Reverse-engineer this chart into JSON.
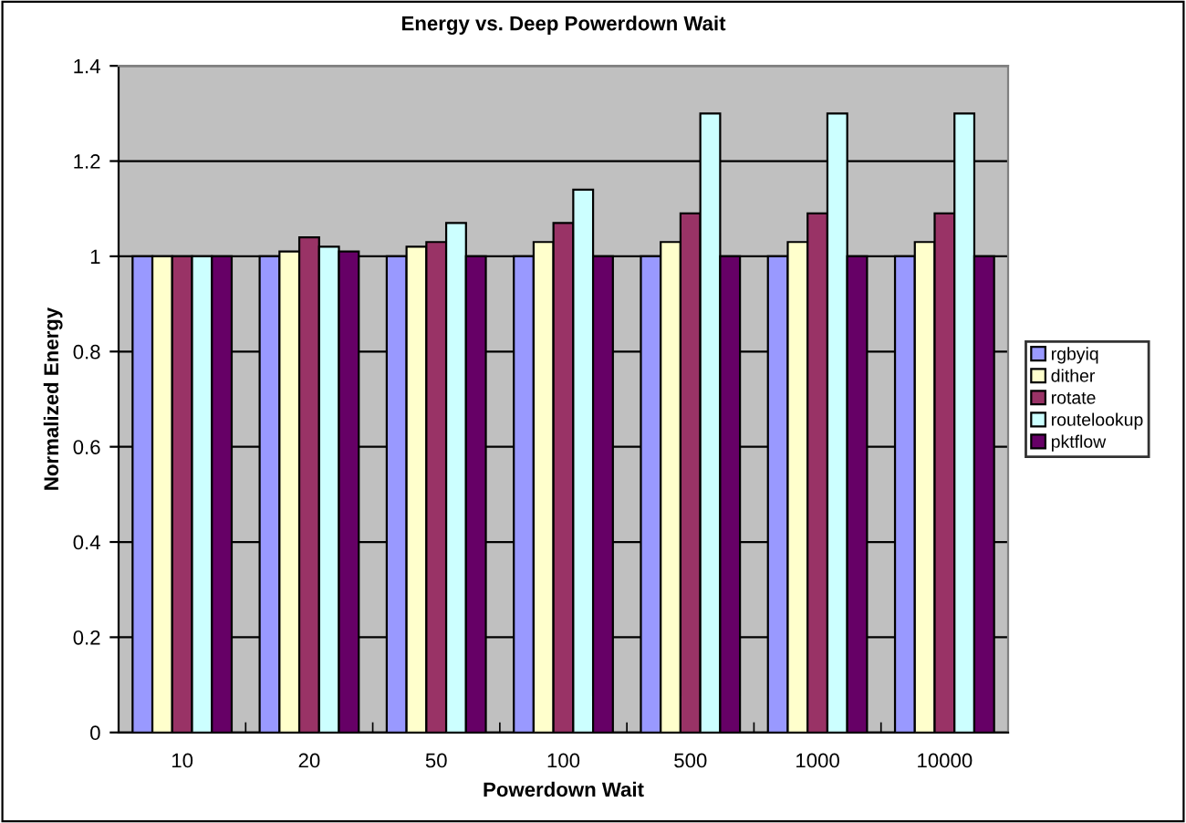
{
  "chart_data": {
    "type": "bar",
    "title": "Energy vs. Deep Powerdown Wait",
    "xlabel": "Powerdown Wait",
    "ylabel": "Normalized Energy",
    "categories": [
      "10",
      "20",
      "50",
      "100",
      "500",
      "1000",
      "10000"
    ],
    "series": [
      {
        "name": "rgbyiq",
        "color": "#9999ff",
        "values": [
          1,
          1,
          1,
          1,
          1,
          1,
          1
        ]
      },
      {
        "name": "dither",
        "color": "#ffffcc",
        "values": [
          1,
          1.01,
          1.02,
          1.03,
          1.03,
          1.03,
          1.03
        ]
      },
      {
        "name": "rotate",
        "color": "#993366",
        "values": [
          1,
          1.04,
          1.03,
          1.07,
          1.09,
          1.09,
          1.09
        ]
      },
      {
        "name": "routelookup",
        "color": "#ccffff",
        "values": [
          1,
          1.02,
          1.07,
          1.14,
          1.3,
          1.3,
          1.3
        ]
      },
      {
        "name": "pktflow",
        "color": "#660066",
        "values": [
          1,
          1.01,
          1.0,
          1,
          1,
          1,
          1
        ]
      }
    ],
    "ylim": [
      0,
      1.4
    ],
    "yticks": [
      0,
      0.2,
      0.4,
      0.6,
      0.8,
      1,
      1.2,
      1.4
    ],
    "grid": "y",
    "legend": "right"
  }
}
